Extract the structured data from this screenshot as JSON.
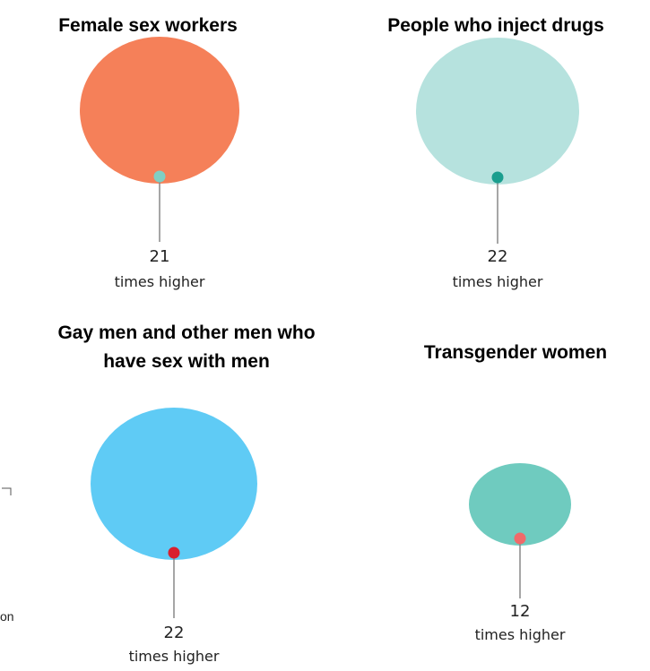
{
  "panels": [
    {
      "title": [
        "Female sex workers"
      ],
      "value": "21",
      "caption": "times higher",
      "color": "#f58059",
      "dot_color": "#7fcfc4"
    },
    {
      "title": [
        "People who inject drugs"
      ],
      "value": "22",
      "caption": "times higher",
      "color": "#b6e2de",
      "dot_color": "#1a9e8e"
    },
    {
      "title": [
        "Gay men and other men who",
        "have sex with men"
      ],
      "value": "22",
      "caption": "times higher",
      "color": "#5fcbf5",
      "dot_color": "#d8202f"
    },
    {
      "title": [
        "Transgender women"
      ],
      "value": "12",
      "caption": "times higher",
      "color": "#6fcbbf",
      "dot_color": "#f06a6a"
    }
  ],
  "stray_text": "on"
}
